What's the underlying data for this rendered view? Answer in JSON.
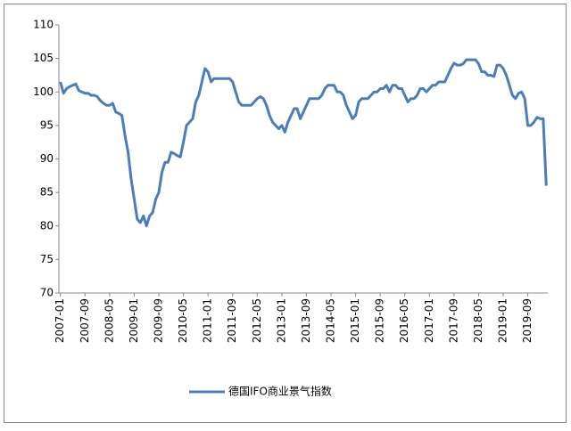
{
  "chart_data": {
    "type": "line",
    "categories": [
      "2007-01",
      null,
      null,
      null,
      null,
      null,
      null,
      null,
      "2007-09",
      null,
      null,
      null,
      null,
      null,
      null,
      null,
      "2008-05",
      null,
      null,
      null,
      null,
      null,
      null,
      null,
      "2009-01",
      null,
      null,
      null,
      null,
      null,
      null,
      null,
      "2009-09",
      null,
      null,
      null,
      null,
      null,
      null,
      null,
      "2010-05",
      null,
      null,
      null,
      null,
      null,
      null,
      null,
      "2011-01",
      null,
      null,
      null,
      null,
      null,
      null,
      null,
      "2011-09",
      null,
      null,
      null,
      null,
      null,
      null,
      null,
      "2012-05",
      null,
      null,
      null,
      null,
      null,
      null,
      null,
      "2013-01",
      null,
      null,
      null,
      null,
      null,
      null,
      null,
      "2013-09",
      null,
      null,
      null,
      null,
      null,
      null,
      null,
      "2014-05",
      null,
      null,
      null,
      null,
      null,
      null,
      null,
      "2015-01",
      null,
      null,
      null,
      null,
      null,
      null,
      null,
      "2015-09",
      null,
      null,
      null,
      null,
      null,
      null,
      null,
      "2016-05",
      null,
      null,
      null,
      null,
      null,
      null,
      null,
      "2017-01",
      null,
      null,
      null,
      null,
      null,
      null,
      null,
      "2017-09",
      null,
      null,
      null,
      null,
      null,
      null,
      null,
      "2018-05",
      null,
      null,
      null,
      null,
      null,
      null,
      null,
      "2019-01",
      null,
      null,
      null,
      null,
      null,
      null,
      null,
      "2019-09",
      null,
      null,
      null,
      null,
      null,
      null
    ],
    "series": [
      {
        "name": "德国IFO商业景气指数",
        "color": "#4a7ebb",
        "values": [
          101.5,
          99.8,
          100.5,
          100.8,
          101.0,
          101.2,
          100.2,
          100.0,
          99.8,
          99.8,
          99.5,
          99.5,
          99.3,
          98.7,
          98.3,
          98.0,
          98.0,
          98.3,
          97.0,
          96.8,
          96.5,
          93.5,
          91.0,
          87.0,
          84.0,
          81.0,
          80.5,
          81.5,
          80.0,
          81.5,
          82.0,
          84.0,
          85.0,
          88.0,
          89.5,
          89.5,
          91.0,
          90.8,
          90.5,
          90.3,
          92.5,
          95.0,
          95.5,
          96.0,
          98.5,
          99.5,
          101.5,
          103.5,
          103.0,
          101.5,
          102.0,
          102.0,
          102.0,
          102.0,
          102.0,
          102.0,
          101.5,
          100.0,
          98.5,
          98.0,
          98.0,
          98.0,
          98.0,
          98.5,
          99.0,
          99.3,
          99.0,
          98.0,
          96.5,
          95.5,
          95.0,
          94.5,
          95.0,
          94.0,
          95.5,
          96.5,
          97.5,
          97.5,
          96.0,
          97.0,
          98.0,
          99.0,
          99.0,
          99.0,
          99.0,
          99.5,
          100.5,
          101.0,
          101.0,
          101.0,
          100.0,
          100.0,
          99.5,
          98.0,
          97.0,
          96.0,
          96.5,
          98.5,
          99.0,
          99.0,
          99.0,
          99.5,
          100.0,
          100.0,
          100.5,
          100.5,
          101.0,
          100.0,
          101.0,
          101.0,
          100.5,
          100.5,
          99.5,
          98.5,
          99.0,
          99.0,
          99.5,
          100.5,
          100.5,
          100.0,
          100.5,
          101.0,
          101.0,
          101.5,
          101.5,
          101.5,
          102.5,
          103.5,
          104.3,
          104.0,
          104.0,
          104.2,
          104.8,
          104.8,
          104.8,
          104.8,
          104.2,
          103.0,
          103.0,
          102.5,
          102.5,
          102.3,
          104.0,
          104.0,
          103.5,
          102.5,
          101.0,
          99.5,
          99.0,
          99.8,
          100.0,
          99.0,
          95.0,
          95.0,
          95.5,
          96.2,
          96.0,
          96.0,
          86.0
        ]
      }
    ],
    "ylim": [
      70,
      110
    ],
    "yticks": [
      70,
      75,
      80,
      85,
      90,
      95,
      100,
      105,
      110
    ],
    "grid": false,
    "legend": "bottom"
  }
}
